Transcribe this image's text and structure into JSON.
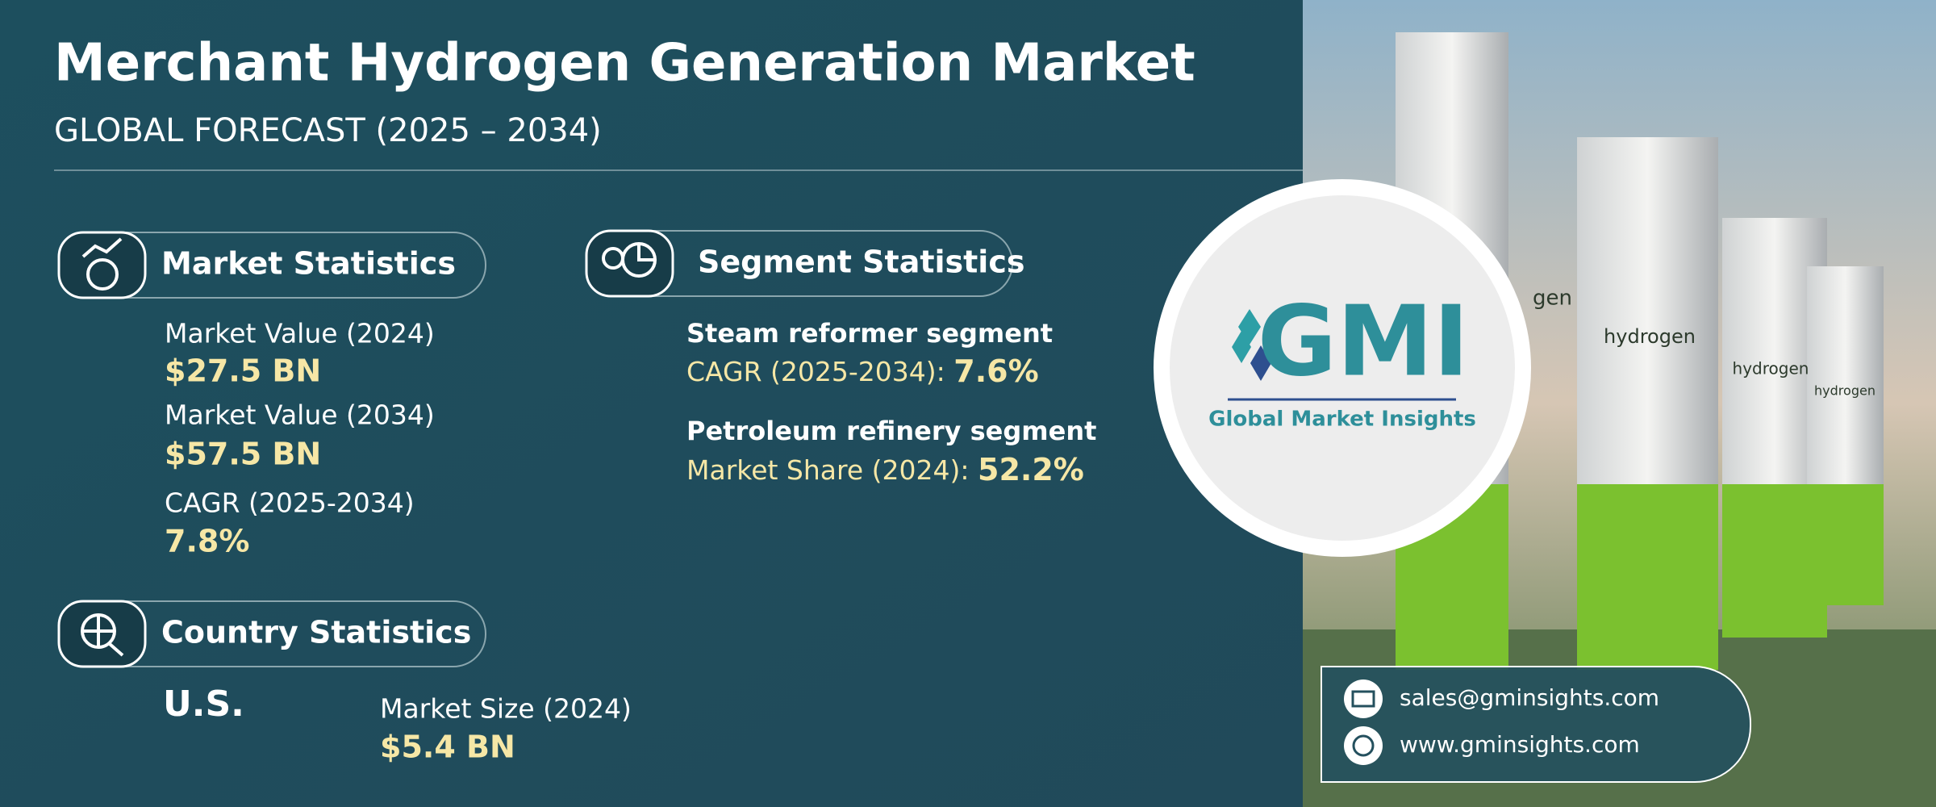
{
  "header": {
    "title": "Merchant Hydrogen Generation Market",
    "subtitle": "GLOBAL FORECAST (2025 – 2034)"
  },
  "market_statistics": {
    "heading": "Market Statistics",
    "items": [
      {
        "label": "Market Value (2024)",
        "value": "$27.5 BN"
      },
      {
        "label": "Market Value (2034)",
        "value": "$57.5 BN"
      },
      {
        "label": "CAGR (2025-2034)",
        "value": "7.8%"
      }
    ]
  },
  "segment_statistics": {
    "heading": "Segment Statistics",
    "items": [
      {
        "name": "Steam reformer segment",
        "label": "CAGR (2025-2034):",
        "value": "7.6%"
      },
      {
        "name": "Petroleum refinery segment",
        "label": "Market Share (2024):",
        "value": "52.2%"
      }
    ]
  },
  "country_statistics": {
    "heading": "Country Statistics",
    "country": "U.S.",
    "label": "Market Size (2024)",
    "value": "$5.4 BN"
  },
  "logo": {
    "mark": "GMI",
    "name": "Global Market Insights"
  },
  "photo": {
    "tank_labels": [
      "gen",
      "hydrogen",
      "hydrogen",
      "hydrogen"
    ]
  },
  "contact": {
    "email": "sales@gminsights.com",
    "website": "www.gminsights.com"
  }
}
